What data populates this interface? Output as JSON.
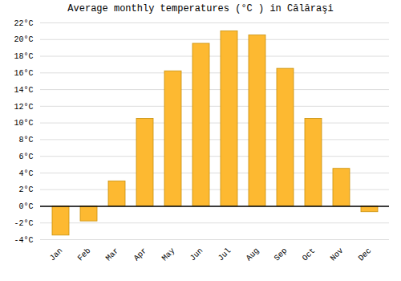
{
  "chart_data": {
    "type": "bar",
    "title": "Average monthly temperatures (°C ) in Călăraşi",
    "categories": [
      "Jan",
      "Feb",
      "Mar",
      "Apr",
      "May",
      "Jun",
      "Jul",
      "Aug",
      "Sep",
      "Oct",
      "Nov",
      "Dec"
    ],
    "values": [
      -3.5,
      -1.8,
      3.0,
      10.5,
      16.2,
      19.5,
      21.0,
      20.5,
      16.5,
      10.5,
      4.5,
      -0.7
    ],
    "color": "#FDB931",
    "ylim": [
      -4,
      22
    ],
    "yticks": [
      {
        "value": -4,
        "label": "-4°C"
      },
      {
        "value": -2,
        "label": "-2°C"
      },
      {
        "value": 0,
        "label": "0°C"
      },
      {
        "value": 2,
        "label": "2°C"
      },
      {
        "value": 4,
        "label": "4°C"
      },
      {
        "value": 6,
        "label": "6°C"
      },
      {
        "value": 8,
        "label": "8°C"
      },
      {
        "value": 10,
        "label": "10°C"
      },
      {
        "value": 12,
        "label": "12°C"
      },
      {
        "value": 14,
        "label": "14°C"
      },
      {
        "value": 16,
        "label": "16°C"
      },
      {
        "value": 18,
        "label": "18°C"
      },
      {
        "value": 20,
        "label": "20°C"
      },
      {
        "value": 22,
        "label": "22°C"
      }
    ],
    "grid": true
  }
}
